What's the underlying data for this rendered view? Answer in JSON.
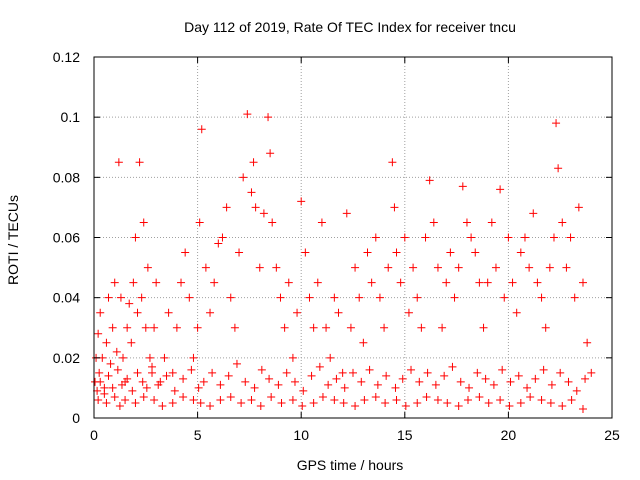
{
  "chart_data": {
    "type": "scatter",
    "title": "Day 112 of 2019, Rate Of TEC Index for receiver tncu",
    "xlabel": "GPS time / hours",
    "ylabel": "ROTI / TECUs",
    "xlim": [
      0,
      25
    ],
    "ylim": [
      0,
      0.12
    ],
    "xticks": [
      0,
      5,
      10,
      15,
      20,
      25
    ],
    "xtick_labels": [
      "0",
      "5",
      "10",
      "15",
      "20",
      "25"
    ],
    "yticks": [
      0,
      0.02,
      0.04,
      0.06,
      0.08,
      0.1,
      0.12
    ],
    "ytick_labels": [
      "0",
      "0.02",
      "0.04",
      "0.06",
      "0.08",
      "0.1",
      "0.12"
    ],
    "grid": true,
    "marker": "+",
    "series": [
      {
        "name": "ROTI",
        "color": "#ff0000",
        "x": [
          0.05,
          0.1,
          0.2,
          0.25,
          0.3,
          0.4,
          0.5,
          0.6,
          0.7,
          0.8,
          0.9,
          1.0,
          1.1,
          1.2,
          1.3,
          1.4,
          1.5,
          1.6,
          1.7,
          1.8,
          1.9,
          2.0,
          2.1,
          2.2,
          2.3,
          2.4,
          2.5,
          2.6,
          2.7,
          2.8,
          2.9,
          3.0,
          3.2,
          3.4,
          3.6,
          3.8,
          4.0,
          4.2,
          4.4,
          4.6,
          4.8,
          5.0,
          5.1,
          5.2,
          5.4,
          5.6,
          5.8,
          6.0,
          6.2,
          6.4,
          6.6,
          6.8,
          7.0,
          7.2,
          7.4,
          7.6,
          7.7,
          7.8,
          8.0,
          8.2,
          8.4,
          8.5,
          8.6,
          8.8,
          9.0,
          9.2,
          9.4,
          9.6,
          9.8,
          10.0,
          10.2,
          10.4,
          10.6,
          10.8,
          11.0,
          11.2,
          11.4,
          11.6,
          11.8,
          12.0,
          12.2,
          12.4,
          12.6,
          12.8,
          13.0,
          13.2,
          13.4,
          13.6,
          13.8,
          14.0,
          14.2,
          14.4,
          14.5,
          14.6,
          14.8,
          15.0,
          15.2,
          15.4,
          15.6,
          15.8,
          16.0,
          16.2,
          16.4,
          16.6,
          16.8,
          17.0,
          17.2,
          17.4,
          17.6,
          17.8,
          18.0,
          18.2,
          18.4,
          18.6,
          18.8,
          19.0,
          19.2,
          19.4,
          19.6,
          19.8,
          20.0,
          20.2,
          20.4,
          20.6,
          20.8,
          21.0,
          21.2,
          21.4,
          21.6,
          21.8,
          22.0,
          22.2,
          22.3,
          22.4,
          22.6,
          22.8,
          23.0,
          23.2,
          23.4,
          23.6,
          23.8,
          24.0,
          0.15,
          0.3,
          0.5,
          0.7,
          0.9,
          1.15,
          1.35,
          1.6,
          1.85,
          2.1,
          2.35,
          2.55,
          2.8,
          3.1,
          3.5,
          3.9,
          4.3,
          4.7,
          5.05,
          5.3,
          5.7,
          6.1,
          6.5,
          6.9,
          7.3,
          7.75,
          8.1,
          8.45,
          8.9,
          9.3,
          9.7,
          10.1,
          10.5,
          10.9,
          11.3,
          11.7,
          12.1,
          12.5,
          12.9,
          13.3,
          13.7,
          14.1,
          14.55,
          14.9,
          15.3,
          15.7,
          16.1,
          16.5,
          16.9,
          17.3,
          17.7,
          18.1,
          18.5,
          18.9,
          19.3,
          19.7,
          20.1,
          20.5,
          20.9,
          21.3,
          21.7,
          22.1,
          22.5,
          22.9,
          23.3,
          23.7,
          0.2,
          0.6,
          1.0,
          1.25,
          1.5,
          2.0,
          2.4,
          2.9,
          3.3,
          3.8,
          4.3,
          4.8,
          5.15,
          5.6,
          6.1,
          6.6,
          7.1,
          7.6,
          8.05,
          8.55,
          9.05,
          9.6,
          10.05,
          10.6,
          11.05,
          11.6,
          12.05,
          12.6,
          13.05,
          13.6,
          14.05,
          14.6,
          15.05,
          15.6,
          16.05,
          16.6,
          17.05,
          17.6,
          18.05,
          18.6,
          19.05,
          19.6,
          20.05,
          20.6,
          21.05,
          21.6,
          22.05,
          22.6,
          23.05,
          23.6
        ],
        "y": [
          0.012,
          0.02,
          0.028,
          0.015,
          0.035,
          0.02,
          0.01,
          0.025,
          0.04,
          0.018,
          0.03,
          0.045,
          0.022,
          0.085,
          0.04,
          0.02,
          0.012,
          0.03,
          0.038,
          0.025,
          0.045,
          0.06,
          0.035,
          0.085,
          0.04,
          0.065,
          0.03,
          0.05,
          0.02,
          0.015,
          0.03,
          0.045,
          0.012,
          0.02,
          0.035,
          0.015,
          0.03,
          0.045,
          0.055,
          0.04,
          0.02,
          0.03,
          0.065,
          0.096,
          0.05,
          0.035,
          0.045,
          0.058,
          0.06,
          0.07,
          0.04,
          0.03,
          0.055,
          0.08,
          0.101,
          0.075,
          0.085,
          0.07,
          0.05,
          0.068,
          0.1,
          0.088,
          0.065,
          0.05,
          0.04,
          0.03,
          0.045,
          0.02,
          0.035,
          0.072,
          0.055,
          0.04,
          0.03,
          0.045,
          0.065,
          0.03,
          0.02,
          0.04,
          0.035,
          0.015,
          0.068,
          0.03,
          0.05,
          0.04,
          0.025,
          0.055,
          0.045,
          0.06,
          0.04,
          0.03,
          0.05,
          0.085,
          0.07,
          0.055,
          0.045,
          0.06,
          0.035,
          0.05,
          0.04,
          0.03,
          0.06,
          0.079,
          0.065,
          0.05,
          0.03,
          0.045,
          0.055,
          0.04,
          0.05,
          0.077,
          0.065,
          0.06,
          0.055,
          0.045,
          0.03,
          0.045,
          0.065,
          0.05,
          0.076,
          0.04,
          0.06,
          0.045,
          0.035,
          0.055,
          0.06,
          0.05,
          0.068,
          0.045,
          0.04,
          0.03,
          0.05,
          0.06,
          0.098,
          0.083,
          0.065,
          0.05,
          0.06,
          0.04,
          0.07,
          0.045,
          0.025,
          0.015,
          0.009,
          0.012,
          0.008,
          0.014,
          0.01,
          0.016,
          0.011,
          0.013,
          0.009,
          0.015,
          0.012,
          0.01,
          0.017,
          0.011,
          0.014,
          0.009,
          0.013,
          0.016,
          0.01,
          0.012,
          0.015,
          0.011,
          0.014,
          0.018,
          0.012,
          0.01,
          0.016,
          0.013,
          0.011,
          0.015,
          0.012,
          0.009,
          0.014,
          0.017,
          0.011,
          0.013,
          0.01,
          0.015,
          0.012,
          0.016,
          0.011,
          0.014,
          0.01,
          0.013,
          0.016,
          0.012,
          0.015,
          0.011,
          0.014,
          0.017,
          0.012,
          0.01,
          0.015,
          0.013,
          0.011,
          0.016,
          0.012,
          0.014,
          0.01,
          0.013,
          0.016,
          0.011,
          0.015,
          0.012,
          0.009,
          0.013,
          0.006,
          0.005,
          0.007,
          0.004,
          0.006,
          0.005,
          0.007,
          0.006,
          0.004,
          0.005,
          0.007,
          0.006,
          0.005,
          0.004,
          0.006,
          0.007,
          0.005,
          0.006,
          0.004,
          0.007,
          0.005,
          0.006,
          0.004,
          0.005,
          0.007,
          0.006,
          0.005,
          0.004,
          0.006,
          0.007,
          0.005,
          0.006,
          0.004,
          0.005,
          0.007,
          0.006,
          0.005,
          0.004,
          0.006,
          0.007,
          0.005,
          0.006,
          0.004,
          0.005,
          0.007,
          0.006,
          0.005,
          0.004,
          0.006,
          0.003
        ]
      }
    ]
  }
}
